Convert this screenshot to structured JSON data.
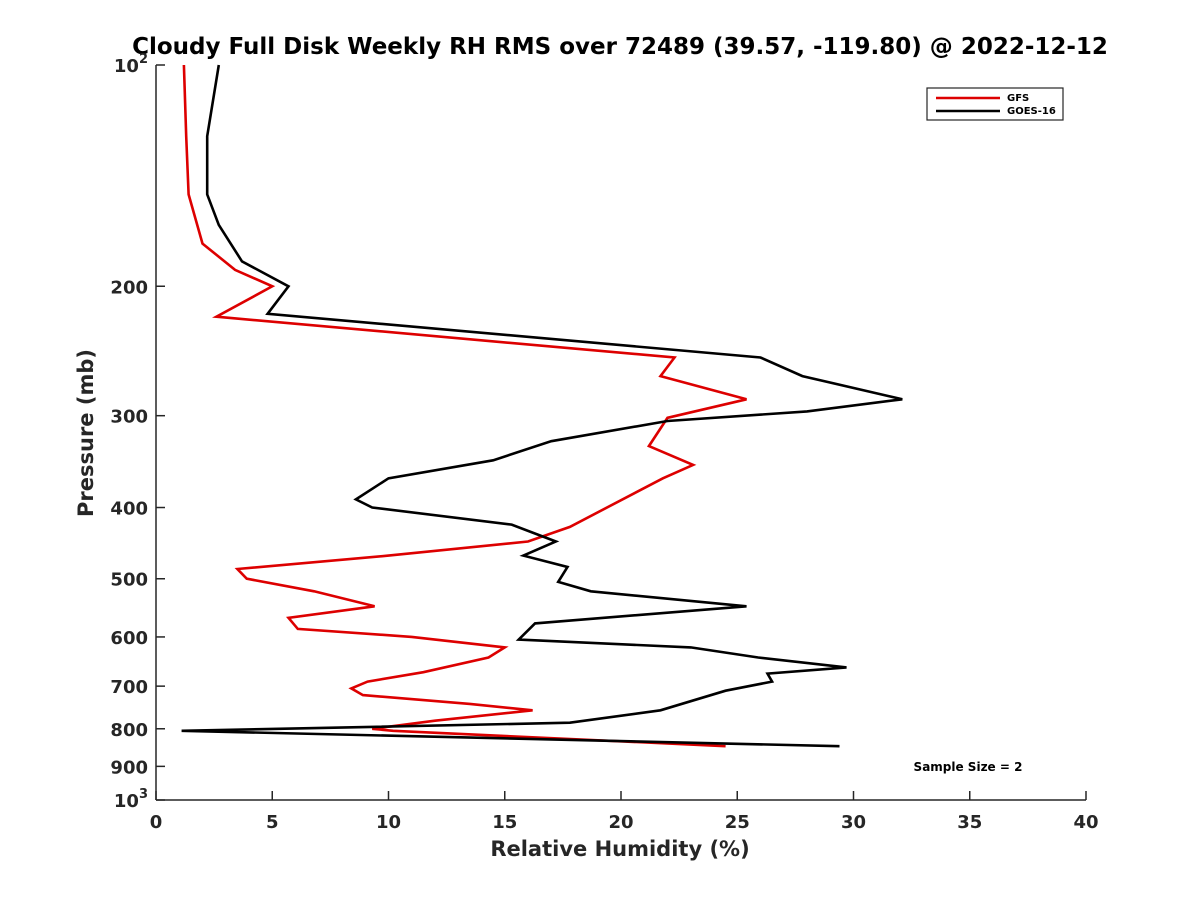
{
  "chart_data": {
    "type": "line",
    "title": "Cloudy Full Disk Weekly RH RMS over 72489 (39.57, -119.80) @ 2022-12-12",
    "xlabel": "Relative Humidity (%)",
    "ylabel": "Pressure (mb)",
    "xlim": [
      0,
      40
    ],
    "ylim": [
      100,
      1000
    ],
    "yscale": "log",
    "y_reversed": true,
    "grid": false,
    "legend_position": "top-right",
    "x_ticks": [
      "0",
      "5",
      "10",
      "15",
      "20",
      "25",
      "30",
      "35",
      "40"
    ],
    "y_ticks": [
      {
        "value": 100,
        "base": "10",
        "sup": "2"
      },
      {
        "value": 200,
        "base": "200",
        "sup": ""
      },
      {
        "value": 300,
        "base": "300",
        "sup": ""
      },
      {
        "value": 400,
        "base": "400",
        "sup": ""
      },
      {
        "value": 500,
        "base": "500",
        "sup": ""
      },
      {
        "value": 600,
        "base": "600",
        "sup": ""
      },
      {
        "value": 700,
        "base": "700",
        "sup": ""
      },
      {
        "value": 800,
        "base": "800",
        "sup": ""
      },
      {
        "value": 900,
        "base": "900",
        "sup": ""
      },
      {
        "value": 1000,
        "base": "10",
        "sup": "3"
      }
    ],
    "series": [
      {
        "name": "GFS",
        "color": "#dd0000",
        "points": [
          {
            "x": 1.2,
            "y": 100
          },
          {
            "x": 1.3,
            "y": 125
          },
          {
            "x": 1.4,
            "y": 150
          },
          {
            "x": 2.0,
            "y": 175
          },
          {
            "x": 3.4,
            "y": 190
          },
          {
            "x": 5.0,
            "y": 200
          },
          {
            "x": 2.6,
            "y": 220
          },
          {
            "x": 22.3,
            "y": 250
          },
          {
            "x": 21.7,
            "y": 265
          },
          {
            "x": 25.4,
            "y": 285
          },
          {
            "x": 22.0,
            "y": 302
          },
          {
            "x": 21.2,
            "y": 330
          },
          {
            "x": 23.1,
            "y": 350
          },
          {
            "x": 21.8,
            "y": 365
          },
          {
            "x": 17.8,
            "y": 425
          },
          {
            "x": 16.0,
            "y": 445
          },
          {
            "x": 10.0,
            "y": 465
          },
          {
            "x": 3.5,
            "y": 485
          },
          {
            "x": 3.9,
            "y": 500
          },
          {
            "x": 6.8,
            "y": 520
          },
          {
            "x": 9.4,
            "y": 545
          },
          {
            "x": 5.7,
            "y": 565
          },
          {
            "x": 6.1,
            "y": 585
          },
          {
            "x": 11.0,
            "y": 600
          },
          {
            "x": 15.0,
            "y": 620
          },
          {
            "x": 14.3,
            "y": 640
          },
          {
            "x": 11.5,
            "y": 670
          },
          {
            "x": 9.1,
            "y": 690
          },
          {
            "x": 8.4,
            "y": 705
          },
          {
            "x": 8.9,
            "y": 720
          },
          {
            "x": 13.5,
            "y": 740
          },
          {
            "x": 16.2,
            "y": 755
          },
          {
            "x": 12.0,
            "y": 780
          },
          {
            "x": 9.3,
            "y": 800
          },
          {
            "x": 10.2,
            "y": 805
          },
          {
            "x": 24.5,
            "y": 845
          }
        ]
      },
      {
        "name": "GOES-16",
        "color": "#000000",
        "points": [
          {
            "x": 2.7,
            "y": 100
          },
          {
            "x": 2.2,
            "y": 125
          },
          {
            "x": 2.2,
            "y": 150
          },
          {
            "x": 2.7,
            "y": 165
          },
          {
            "x": 3.7,
            "y": 185
          },
          {
            "x": 5.7,
            "y": 200
          },
          {
            "x": 4.8,
            "y": 218
          },
          {
            "x": 26.0,
            "y": 250
          },
          {
            "x": 27.8,
            "y": 265
          },
          {
            "x": 32.1,
            "y": 285
          },
          {
            "x": 28.0,
            "y": 296
          },
          {
            "x": 22.0,
            "y": 305
          },
          {
            "x": 17.0,
            "y": 325
          },
          {
            "x": 14.5,
            "y": 345
          },
          {
            "x": 10.0,
            "y": 365
          },
          {
            "x": 8.6,
            "y": 390
          },
          {
            "x": 9.3,
            "y": 400
          },
          {
            "x": 15.3,
            "y": 422
          },
          {
            "x": 17.2,
            "y": 445
          },
          {
            "x": 15.8,
            "y": 465
          },
          {
            "x": 17.7,
            "y": 482
          },
          {
            "x": 17.3,
            "y": 505
          },
          {
            "x": 18.7,
            "y": 520
          },
          {
            "x": 25.4,
            "y": 545
          },
          {
            "x": 16.3,
            "y": 575
          },
          {
            "x": 15.6,
            "y": 605
          },
          {
            "x": 23.0,
            "y": 620
          },
          {
            "x": 25.9,
            "y": 640
          },
          {
            "x": 29.7,
            "y": 660
          },
          {
            "x": 26.3,
            "y": 673
          },
          {
            "x": 26.5,
            "y": 690
          },
          {
            "x": 24.5,
            "y": 710
          },
          {
            "x": 21.7,
            "y": 755
          },
          {
            "x": 17.8,
            "y": 785
          },
          {
            "x": 9.5,
            "y": 795
          },
          {
            "x": 1.1,
            "y": 805
          },
          {
            "x": 29.4,
            "y": 845
          }
        ]
      }
    ],
    "annotations": [
      "Sample Size = 2"
    ]
  }
}
